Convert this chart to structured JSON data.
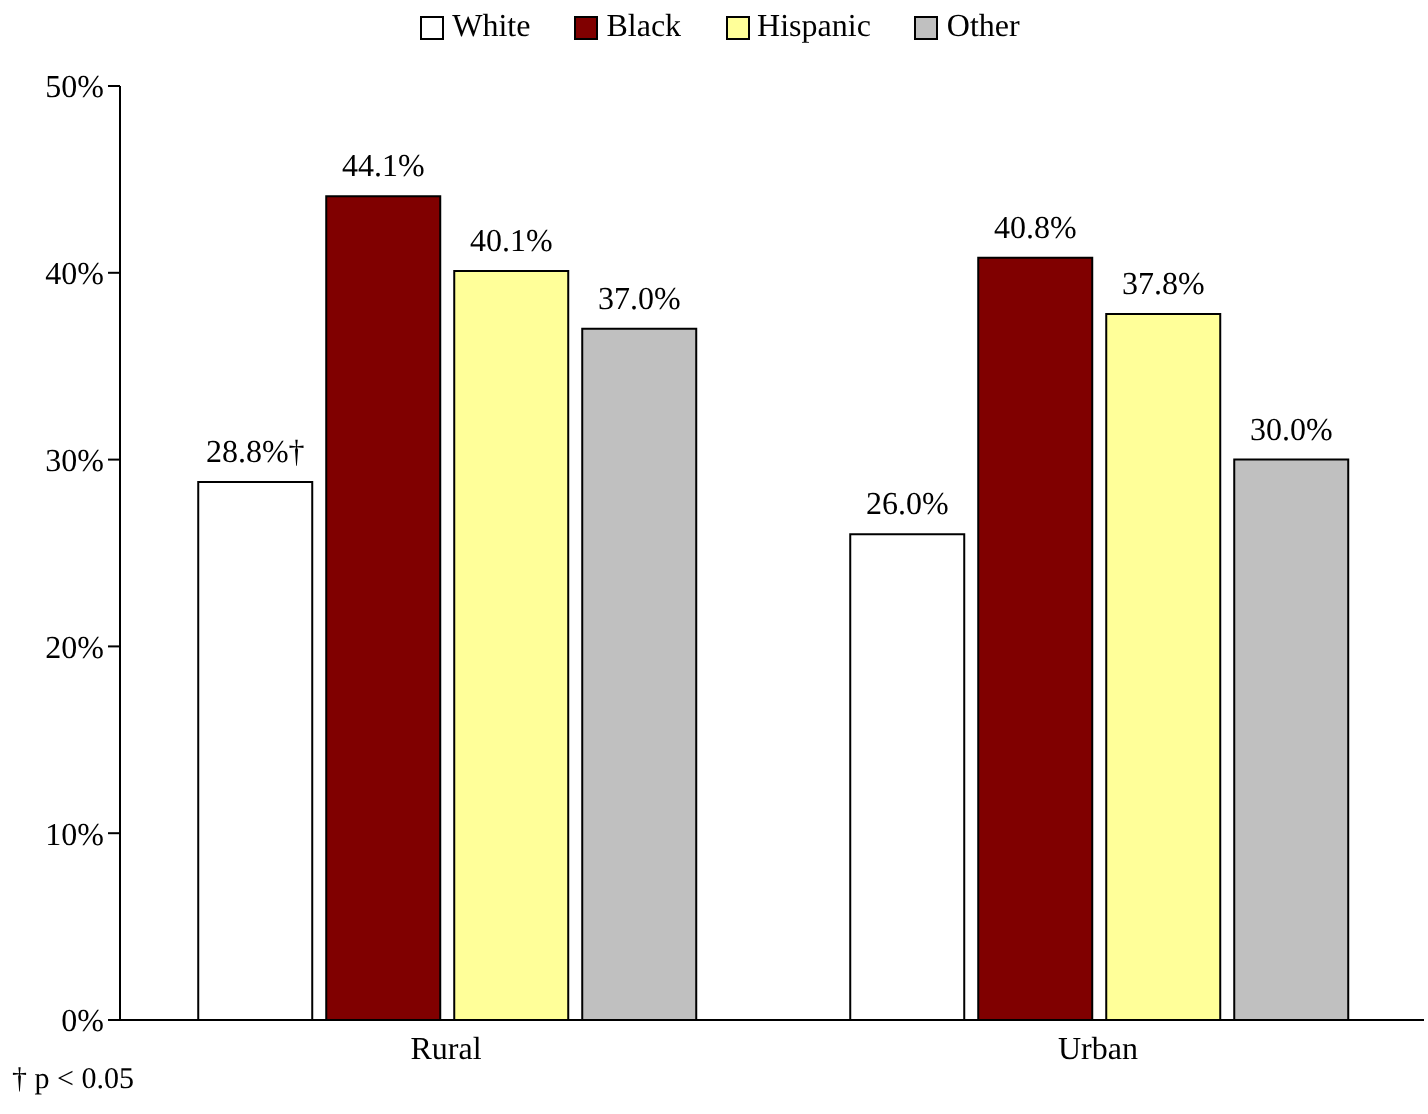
{
  "chart_data": {
    "type": "bar",
    "categories": [
      "Rural",
      "Urban"
    ],
    "series": [
      {
        "name": "White",
        "color": "#ffffff",
        "values": [
          28.8,
          26.0
        ],
        "value_labels": [
          "28.8%†",
          "26.0%"
        ]
      },
      {
        "name": "Black",
        "color": "#800000",
        "values": [
          44.1,
          40.8
        ],
        "value_labels": [
          "44.1%",
          "40.8%"
        ]
      },
      {
        "name": "Hispanic",
        "color": "#ffff99",
        "values": [
          40.1,
          37.8
        ],
        "value_labels": [
          "40.1%",
          "37.8%"
        ]
      },
      {
        "name": "Other",
        "color": "#c0c0c0",
        "values": [
          37.0,
          30.0
        ],
        "value_labels": [
          "37.0%",
          "30.0%"
        ]
      }
    ],
    "ylim": [
      0,
      50
    ],
    "yticks": [
      {
        "value": 0,
        "label": "0%"
      },
      {
        "value": 10,
        "label": "10%"
      },
      {
        "value": 20,
        "label": "20%"
      },
      {
        "value": 30,
        "label": "30%"
      },
      {
        "value": 40,
        "label": "40%"
      },
      {
        "value": 50,
        "label": "50%"
      }
    ],
    "grid": false,
    "legend": "top",
    "annotations": [
      "† p < 0.05"
    ]
  }
}
